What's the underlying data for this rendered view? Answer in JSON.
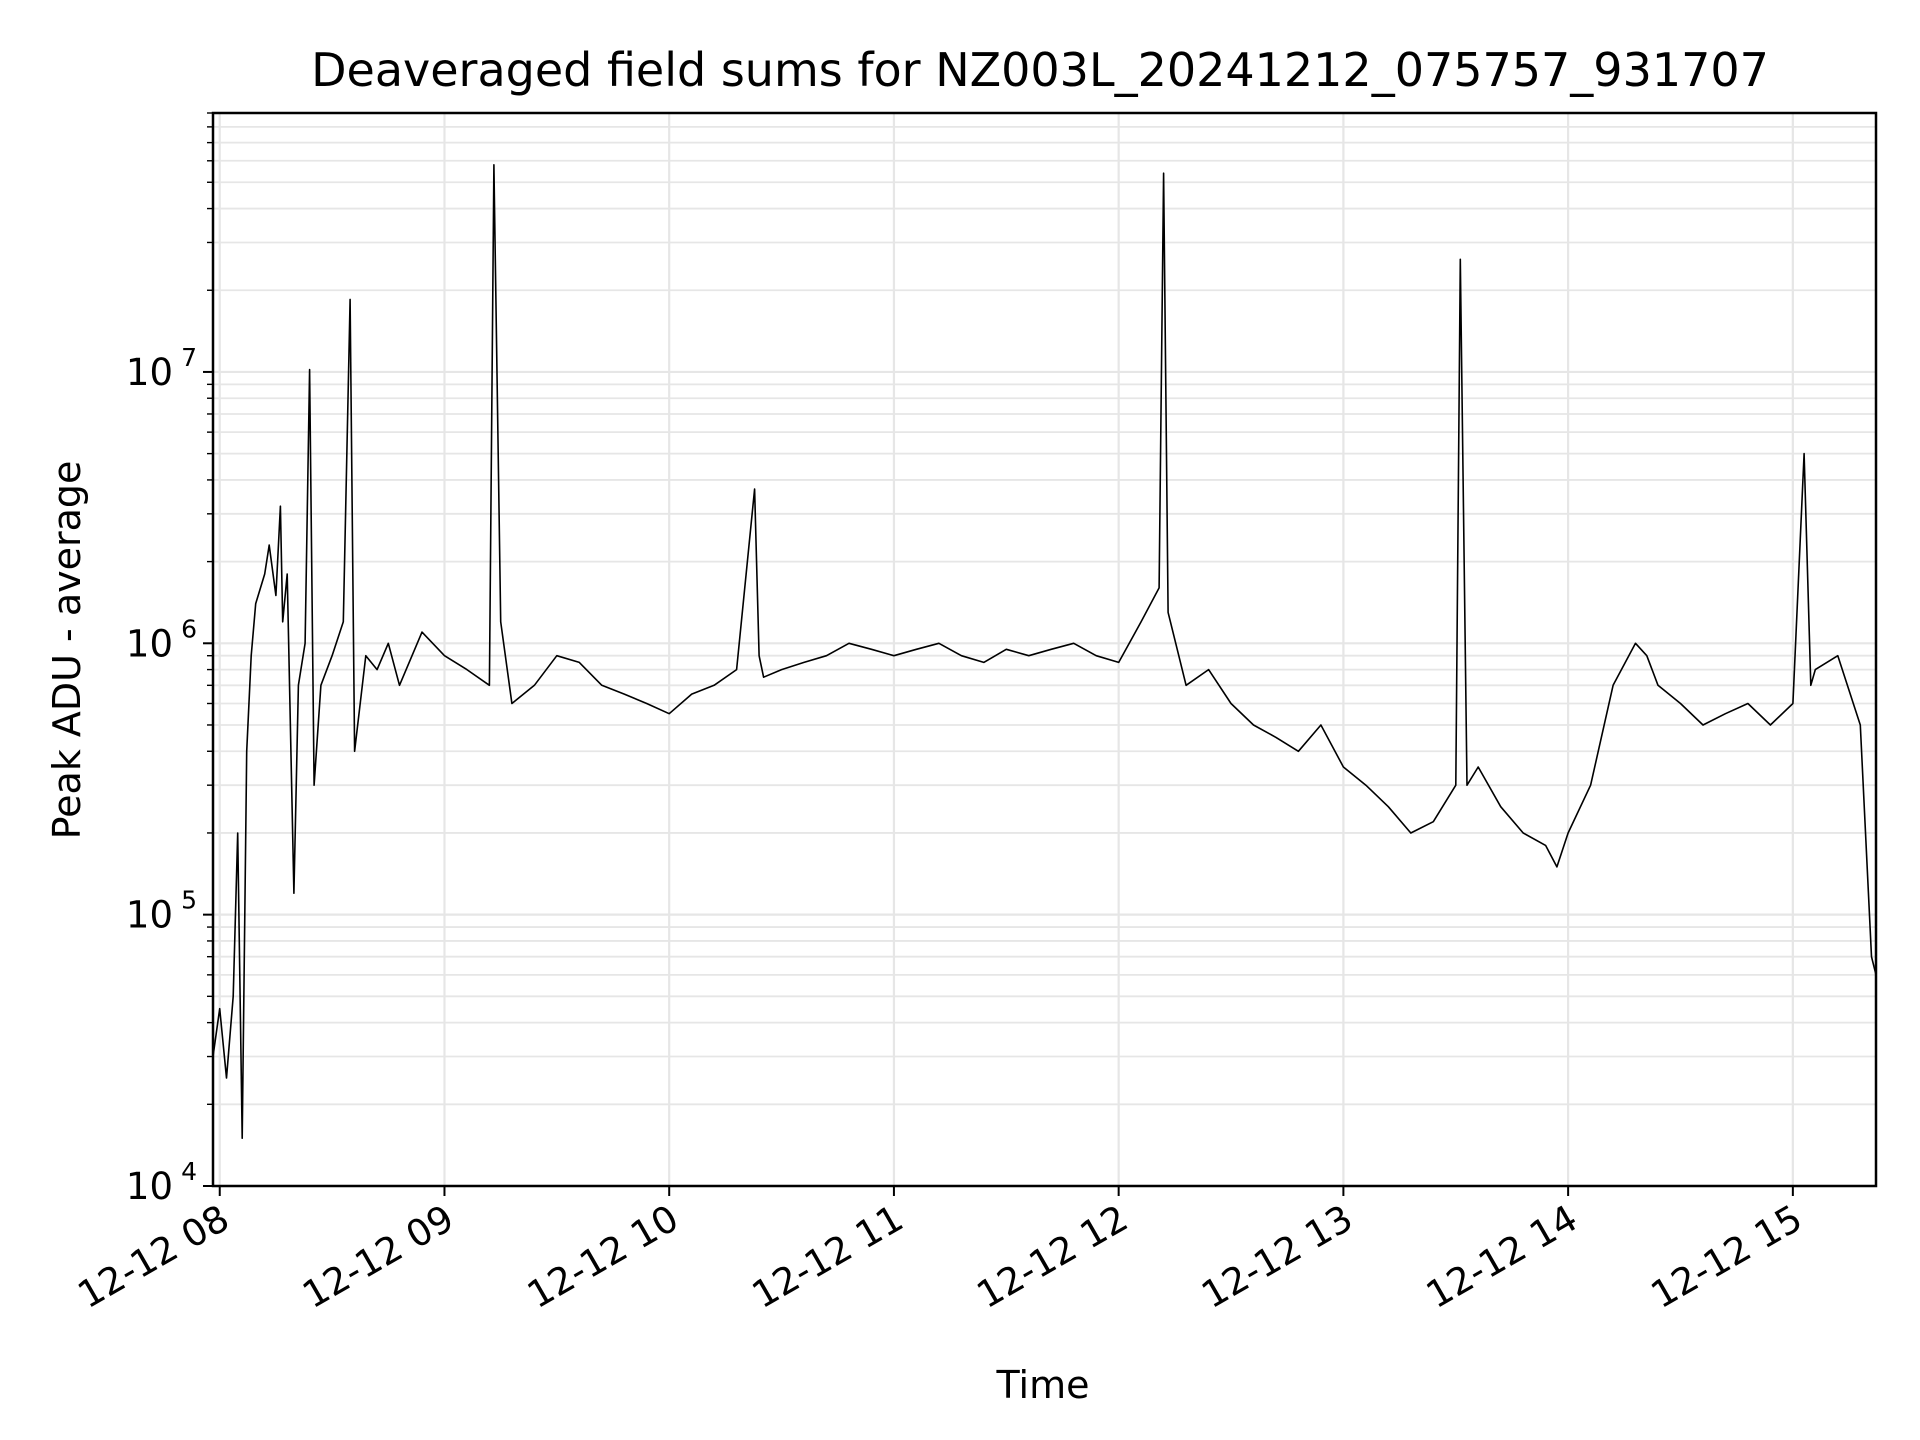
{
  "chart_data": {
    "type": "line",
    "title": "Deaveraged field sums for NZ003L_20241212_075757_931707",
    "xlabel": "Time",
    "ylabel": "Peak ADU - average",
    "yscale": "log",
    "ylim": [
      10000,
      90000000
    ],
    "xlim_hours": [
      7.97,
      15.37
    ],
    "grid": true,
    "line_color": "#000000",
    "grid_color": "#e6e6e6",
    "x_ticks": [
      {
        "hour": 8,
        "label": "12-12 08"
      },
      {
        "hour": 9,
        "label": "12-12 09"
      },
      {
        "hour": 10,
        "label": "12-12 10"
      },
      {
        "hour": 11,
        "label": "12-12 11"
      },
      {
        "hour": 12,
        "label": "12-12 12"
      },
      {
        "hour": 13,
        "label": "12-12 13"
      },
      {
        "hour": 14,
        "label": "12-12 14"
      },
      {
        "hour": 15,
        "label": "12-12 15"
      }
    ],
    "y_ticks": [
      {
        "value": 10000,
        "base": "10",
        "exp": "4"
      },
      {
        "value": 100000,
        "base": "10",
        "exp": "5"
      },
      {
        "value": 1000000,
        "base": "10",
        "exp": "6"
      },
      {
        "value": 10000000,
        "base": "10",
        "exp": "7"
      }
    ],
    "series": [
      {
        "x_hours": [
          7.97,
          8.0,
          8.03,
          8.06,
          8.08,
          8.1,
          8.12,
          8.14,
          8.16,
          8.2,
          8.22,
          8.25,
          8.27,
          8.28,
          8.3,
          8.33,
          8.35,
          8.38,
          8.4,
          8.42,
          8.45,
          8.5,
          8.55,
          8.58,
          8.6,
          8.65,
          8.7,
          8.75,
          8.8,
          8.9,
          9.0,
          9.1,
          9.2,
          9.22,
          9.25,
          9.3,
          9.4,
          9.5,
          9.6,
          9.7,
          9.8,
          9.9,
          10.0,
          10.1,
          10.2,
          10.3,
          10.38,
          10.4,
          10.42,
          10.5,
          10.6,
          10.7,
          10.8,
          10.9,
          11.0,
          11.1,
          11.2,
          11.3,
          11.4,
          11.5,
          11.6,
          11.7,
          11.8,
          11.9,
          12.0,
          12.1,
          12.18,
          12.2,
          12.22,
          12.3,
          12.4,
          12.5,
          12.6,
          12.7,
          12.8,
          12.9,
          13.0,
          13.1,
          13.2,
          13.3,
          13.4,
          13.5,
          13.52,
          13.55,
          13.6,
          13.7,
          13.8,
          13.9,
          13.95,
          14.0,
          14.1,
          14.2,
          14.3,
          14.35,
          14.4,
          14.5,
          14.6,
          14.7,
          14.8,
          14.9,
          15.0,
          15.05,
          15.08,
          15.1,
          15.2,
          15.3,
          15.35,
          15.37
        ],
        "y": [
          30000,
          45000,
          25000,
          50000,
          200000,
          15000,
          400000,
          900000,
          1400000,
          1800000,
          2300000,
          1500000,
          3200000,
          1200000,
          1800000,
          120000,
          700000,
          1000000,
          10200000,
          300000,
          700000,
          900000,
          1200000,
          18500000,
          400000,
          900000,
          800000,
          1000000,
          700000,
          1100000,
          900000,
          800000,
          700000,
          58000000,
          1200000,
          600000,
          700000,
          900000,
          850000,
          700000,
          650000,
          600000,
          550000,
          650000,
          700000,
          800000,
          3700000,
          900000,
          750000,
          800000,
          850000,
          900000,
          1000000,
          950000,
          900000,
          950000,
          1000000,
          900000,
          850000,
          950000,
          900000,
          950000,
          1000000,
          900000,
          850000,
          1200000,
          1600000,
          54000000,
          1300000,
          700000,
          800000,
          600000,
          500000,
          450000,
          400000,
          500000,
          350000,
          300000,
          250000,
          200000,
          220000,
          300000,
          26000000,
          300000,
          350000,
          250000,
          200000,
          180000,
          150000,
          200000,
          300000,
          700000,
          1000000,
          900000,
          700000,
          600000,
          500000,
          550000,
          600000,
          500000,
          600000,
          5000000,
          700000,
          800000,
          900000,
          500000,
          70000,
          60000
        ]
      }
    ]
  }
}
